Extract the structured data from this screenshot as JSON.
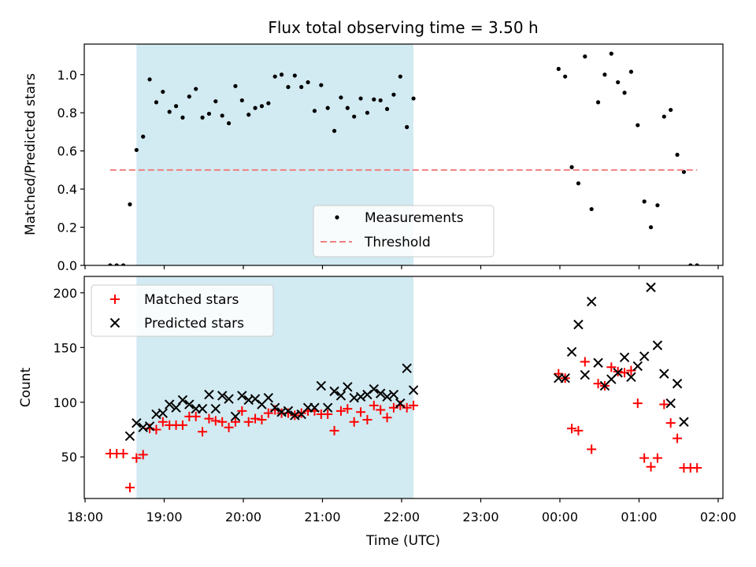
{
  "chart_data": {
    "title": "Flux total observing time = 3.50 h",
    "xlabel": "Time (UTC)",
    "x_ticks": [
      "18:00",
      "19:00",
      "20:00",
      "21:00",
      "22:00",
      "23:00",
      "00:00",
      "01:00",
      "02:00"
    ],
    "x_range_hours": [
      17.99,
      26.06
    ],
    "highlight_span": [
      "18:39",
      "22:09"
    ],
    "highlight_color": "#add8e6",
    "panels": [
      {
        "type": "scatter",
        "ylabel": "Matched/Predicted stars",
        "ylim": [
          0,
          1.16
        ],
        "yticks": [
          "0.0",
          "0.2",
          "0.4",
          "0.6",
          "0.8",
          "1.0"
        ],
        "legend_position": "lower-center",
        "series": [
          {
            "name": "Measurements",
            "color": "#000000",
            "marker": "dot",
            "points": [
              [
                "18:19",
                0.0
              ],
              [
                "18:24",
                0.0
              ],
              [
                "18:29",
                0.0
              ],
              [
                "18:34",
                0.32
              ],
              [
                "18:39",
                0.605
              ],
              [
                "18:44",
                0.675
              ],
              [
                "18:49",
                0.975
              ],
              [
                "18:54",
                0.855
              ],
              [
                "18:59",
                0.91
              ],
              [
                "19:04",
                0.805
              ],
              [
                "19:09",
                0.835
              ],
              [
                "19:14",
                0.775
              ],
              [
                "19:19",
                0.885
              ],
              [
                "19:24",
                0.925
              ],
              [
                "19:29",
                0.775
              ],
              [
                "19:34",
                0.795
              ],
              [
                "19:39",
                0.86
              ],
              [
                "19:44",
                0.785
              ],
              [
                "19:49",
                0.745
              ],
              [
                "19:54",
                0.94
              ],
              [
                "19:59",
                0.865
              ],
              [
                "20:04",
                0.79
              ],
              [
                "20:09",
                0.825
              ],
              [
                "20:14",
                0.835
              ],
              [
                "20:19",
                0.85
              ],
              [
                "20:24",
                0.99
              ],
              [
                "20:29",
                1.0
              ],
              [
                "20:34",
                0.935
              ],
              [
                "20:39",
                0.995
              ],
              [
                "20:44",
                0.935
              ],
              [
                "20:49",
                0.96
              ],
              [
                "20:54",
                0.81
              ],
              [
                "20:59",
                0.945
              ],
              [
                "21:04",
                0.825
              ],
              [
                "21:09",
                0.705
              ],
              [
                "21:14",
                0.88
              ],
              [
                "21:19",
                0.825
              ],
              [
                "21:24",
                0.78
              ],
              [
                "21:29",
                0.875
              ],
              [
                "21:34",
                0.8
              ],
              [
                "21:39",
                0.87
              ],
              [
                "21:44",
                0.865
              ],
              [
                "21:49",
                0.82
              ],
              [
                "21:54",
                0.895
              ],
              [
                "21:59",
                0.99
              ],
              [
                "22:04",
                0.725
              ],
              [
                "22:09",
                0.875
              ],
              [
                "23:59",
                1.03
              ],
              [
                "00:04",
                0.99
              ],
              [
                "00:09",
                0.515
              ],
              [
                "00:14",
                0.43
              ],
              [
                "00:19",
                1.095
              ],
              [
                "00:24",
                0.295
              ],
              [
                "00:29",
                0.855
              ],
              [
                "00:34",
                1.0
              ],
              [
                "00:39",
                1.11
              ],
              [
                "00:44",
                0.96
              ],
              [
                "00:49",
                0.905
              ],
              [
                "00:54",
                1.015
              ],
              [
                "00:59",
                0.735
              ],
              [
                "01:04",
                0.335
              ],
              [
                "01:09",
                0.2
              ],
              [
                "01:14",
                0.315
              ],
              [
                "01:19",
                0.78
              ],
              [
                "01:24",
                0.815
              ],
              [
                "01:29",
                0.58
              ],
              [
                "01:34",
                0.49
              ],
              [
                "01:39",
                0.0
              ],
              [
                "01:44",
                0.0
              ]
            ]
          },
          {
            "name": "Threshold",
            "color": "#f08080",
            "style": "dashed",
            "points": [
              [
                "18:19",
                0.5
              ],
              [
                "01:44",
                0.5
              ]
            ]
          }
        ]
      },
      {
        "type": "scatter",
        "ylabel": "Count",
        "ylim": [
          12,
          215
        ],
        "yticks": [
          "50",
          "100",
          "150",
          "200"
        ],
        "legend_position": "upper-left",
        "series": [
          {
            "name": "Matched stars",
            "color": "#ff0000",
            "marker": "plus",
            "points": [
              [
                "18:19",
                53
              ],
              [
                "18:24",
                53
              ],
              [
                "18:29",
                53
              ],
              [
                "18:34",
                22
              ],
              [
                "18:39",
                49
              ],
              [
                "18:44",
                52
              ],
              [
                "18:49",
                76
              ],
              [
                "18:54",
                75
              ],
              [
                "18:59",
                82
              ],
              [
                "19:04",
                79
              ],
              [
                "19:09",
                79
              ],
              [
                "19:14",
                79
              ],
              [
                "19:19",
                87
              ],
              [
                "19:24",
                87
              ],
              [
                "19:29",
                73
              ],
              [
                "19:34",
                85
              ],
              [
                "19:39",
                83
              ],
              [
                "19:44",
                82
              ],
              [
                "19:49",
                77
              ],
              [
                "19:54",
                82
              ],
              [
                "19:59",
                92
              ],
              [
                "20:04",
                82
              ],
              [
                "20:09",
                85
              ],
              [
                "20:14",
                84
              ],
              [
                "20:19",
                90
              ],
              [
                "20:24",
                93
              ],
              [
                "20:29",
                90
              ],
              [
                "20:34",
                90
              ],
              [
                "20:39",
                88
              ],
              [
                "20:44",
                90
              ],
              [
                "20:49",
                92
              ],
              [
                "20:54",
                92
              ],
              [
                "20:59",
                89
              ],
              [
                "21:04",
                89
              ],
              [
                "21:09",
                74
              ],
              [
                "21:14",
                92
              ],
              [
                "21:19",
                94
              ],
              [
                "21:24",
                82
              ],
              [
                "21:29",
                91
              ],
              [
                "21:34",
                84
              ],
              [
                "21:39",
                97
              ],
              [
                "21:44",
                93
              ],
              [
                "21:49",
                86
              ],
              [
                "21:54",
                95
              ],
              [
                "21:59",
                97
              ],
              [
                "22:04",
                95
              ],
              [
                "22:09",
                97
              ],
              [
                "23:59",
                126
              ],
              [
                "00:04",
                122
              ],
              [
                "00:09",
                76
              ],
              [
                "00:14",
                74
              ],
              [
                "00:19",
                137
              ],
              [
                "00:24",
                57
              ],
              [
                "00:29",
                117
              ],
              [
                "00:34",
                115
              ],
              [
                "00:39",
                132
              ],
              [
                "00:44",
                128
              ],
              [
                "00:49",
                127
              ],
              [
                "00:54",
                129
              ],
              [
                "00:59",
                99
              ],
              [
                "01:04",
                49
              ],
              [
                "01:09",
                41
              ],
              [
                "01:14",
                49
              ],
              [
                "01:19",
                98
              ],
              [
                "01:24",
                81
              ],
              [
                "01:29",
                67
              ],
              [
                "01:34",
                40
              ],
              [
                "01:39",
                40
              ],
              [
                "01:44",
                40
              ]
            ]
          },
          {
            "name": "Predicted stars",
            "color": "#000000",
            "marker": "x",
            "points": [
              [
                "18:34",
                69
              ],
              [
                "18:39",
                81
              ],
              [
                "18:44",
                77
              ],
              [
                "18:49",
                78
              ],
              [
                "18:54",
                89
              ],
              [
                "18:59",
                90
              ],
              [
                "19:04",
                98
              ],
              [
                "19:09",
                95
              ],
              [
                "19:14",
                102
              ],
              [
                "19:19",
                98
              ],
              [
                "19:24",
                94
              ],
              [
                "19:29",
                94
              ],
              [
                "19:34",
                107
              ],
              [
                "19:39",
                94
              ],
              [
                "19:44",
                106
              ],
              [
                "19:49",
                103
              ],
              [
                "19:54",
                87
              ],
              [
                "19:59",
                106
              ],
              [
                "20:04",
                102
              ],
              [
                "20:09",
                103
              ],
              [
                "20:14",
                98
              ],
              [
                "20:19",
                104
              ],
              [
                "20:24",
                95
              ],
              [
                "20:29",
                91
              ],
              [
                "20:34",
                92
              ],
              [
                "20:39",
                88
              ],
              [
                "20:44",
                89
              ],
              [
                "20:49",
                95
              ],
              [
                "20:54",
                95
              ],
              [
                "20:59",
                115
              ],
              [
                "21:04",
                95
              ],
              [
                "21:09",
                110
              ],
              [
                "21:14",
                106
              ],
              [
                "21:19",
                114
              ],
              [
                "21:24",
                104
              ],
              [
                "21:29",
                105
              ],
              [
                "21:34",
                107
              ],
              [
                "21:39",
                112
              ],
              [
                "21:44",
                108
              ],
              [
                "21:49",
                105
              ],
              [
                "21:54",
                107
              ],
              [
                "21:59",
                99
              ],
              [
                "22:04",
                131
              ],
              [
                "22:09",
                111
              ],
              [
                "23:59",
                122
              ],
              [
                "00:04",
                122
              ],
              [
                "00:09",
                146
              ],
              [
                "00:14",
                171
              ],
              [
                "00:19",
                125
              ],
              [
                "00:24",
                192
              ],
              [
                "00:29",
                136
              ],
              [
                "00:34",
                115
              ],
              [
                "00:39",
                121
              ],
              [
                "00:44",
                127
              ],
              [
                "00:49",
                141
              ],
              [
                "00:54",
                123
              ],
              [
                "00:59",
                133
              ],
              [
                "01:04",
                142
              ],
              [
                "01:09",
                205
              ],
              [
                "01:14",
                152
              ],
              [
                "01:19",
                126
              ],
              [
                "01:24",
                99
              ],
              [
                "01:29",
                117
              ],
              [
                "01:34",
                82
              ]
            ]
          }
        ]
      }
    ]
  }
}
